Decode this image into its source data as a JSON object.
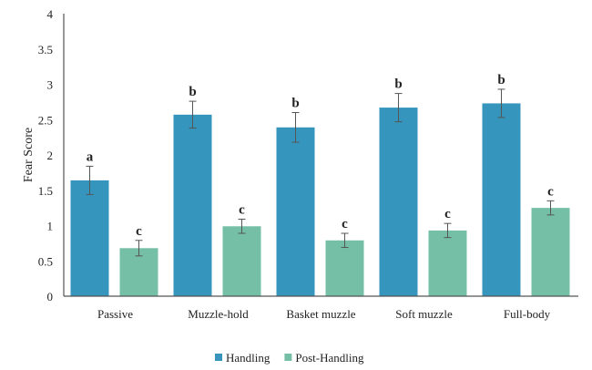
{
  "chart_data": {
    "type": "bar",
    "title": "",
    "xlabel": "",
    "ylabel": "Fear Score",
    "ylim": [
      0,
      4
    ],
    "yticks": [
      "0",
      "0.5",
      "1",
      "1.5",
      "2",
      "2.5",
      "3",
      "3.5",
      "4"
    ],
    "grid": false,
    "legend_position": "bottom",
    "categories": [
      "Passive",
      "Muzzle-hold",
      "Basket muzzle",
      "Soft muzzle",
      "Full-body"
    ],
    "series": [
      {
        "name": "Handling",
        "color": "#3595bc",
        "values": [
          1.64,
          2.57,
          2.39,
          2.67,
          2.73
        ],
        "errors": [
          0.2,
          0.19,
          0.21,
          0.2,
          0.2
        ],
        "labels": [
          "a",
          "b",
          "b",
          "b",
          "b"
        ]
      },
      {
        "name": "Post-Handling",
        "color": "#76bfa7",
        "values": [
          0.68,
          0.99,
          0.79,
          0.93,
          1.25
        ],
        "errors": [
          0.11,
          0.1,
          0.1,
          0.1,
          0.1
        ],
        "labels": [
          "c",
          "c",
          "c",
          "c",
          "c"
        ]
      }
    ]
  }
}
